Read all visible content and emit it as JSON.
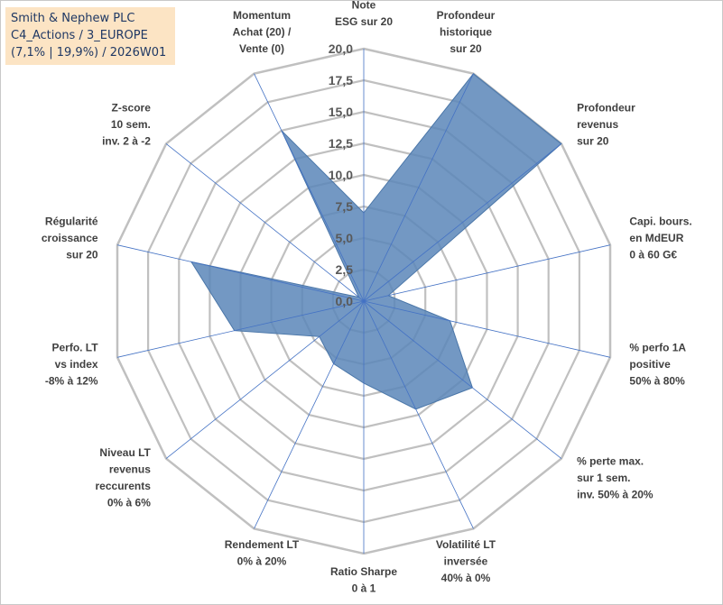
{
  "title": {
    "line1": "Smith & Nephew PLC",
    "line2": "C4_Actions / 3_EUROPE",
    "line3": "(7,1% | 19,9%) / 2026W01"
  },
  "colors": {
    "fill": "#5b86b8",
    "stroke": "#4a76a8",
    "grid": "#c0c0c0",
    "spoke": "#4472c4"
  },
  "chart_data": {
    "type": "radar",
    "title": "Smith & Nephew PLC",
    "rmin": 0,
    "rmax": 20,
    "ticks": [
      "0,0",
      "2,5",
      "5,0",
      "7,5",
      "10,0",
      "12,5",
      "15,0",
      "17,5",
      "20,0"
    ],
    "tick_values": [
      0,
      2.5,
      5,
      7.5,
      10,
      12.5,
      15,
      17.5,
      20
    ],
    "axes": [
      {
        "label": [
          "Note",
          "ESG sur 20"
        ],
        "value": 7.0
      },
      {
        "label": [
          "Profondeur",
          "historique",
          "sur 20"
        ],
        "value": 20.0
      },
      {
        "label": [
          "Profondeur",
          "revenus",
          "sur 20"
        ],
        "value": 20.0
      },
      {
        "label": [
          "Capi. bours.",
          "en MdEUR",
          "0 à 60 G€"
        ],
        "value": 2.0
      },
      {
        "label": [
          "% perfo 1A",
          "positive",
          "50% à 80%"
        ],
        "value": 7.0
      },
      {
        "label": [
          "% perte max.",
          "sur 1 sem.",
          "inv. 50% à 20%"
        ],
        "value": 11.0
      },
      {
        "label": [
          "Volatilité LT",
          "inversée",
          "40% à 0%"
        ],
        "value": 9.5
      },
      {
        "label": [
          "Ratio Sharpe",
          "0 à 1"
        ],
        "value": 6.5
      },
      {
        "label": [
          "Rendement LT",
          "0% à 20%"
        ],
        "value": 5.5
      },
      {
        "label": [
          "Niveau LT",
          "revenus",
          "reccurents",
          "0% à 6%"
        ],
        "value": 4.5
      },
      {
        "label": [
          "Perfo. LT",
          "vs index",
          "-8% à 12%"
        ],
        "value": 10.5
      },
      {
        "label": [
          "Régularité",
          "croissance",
          "sur 20"
        ],
        "value": 14.0
      },
      {
        "label": [
          "Z-score",
          "10 sem.",
          "inv. 2 à -2"
        ],
        "value": 0.5
      },
      {
        "label": [
          "Momentum",
          "Achat (20) /",
          "Vente (0)"
        ],
        "value": 15.0
      }
    ]
  }
}
